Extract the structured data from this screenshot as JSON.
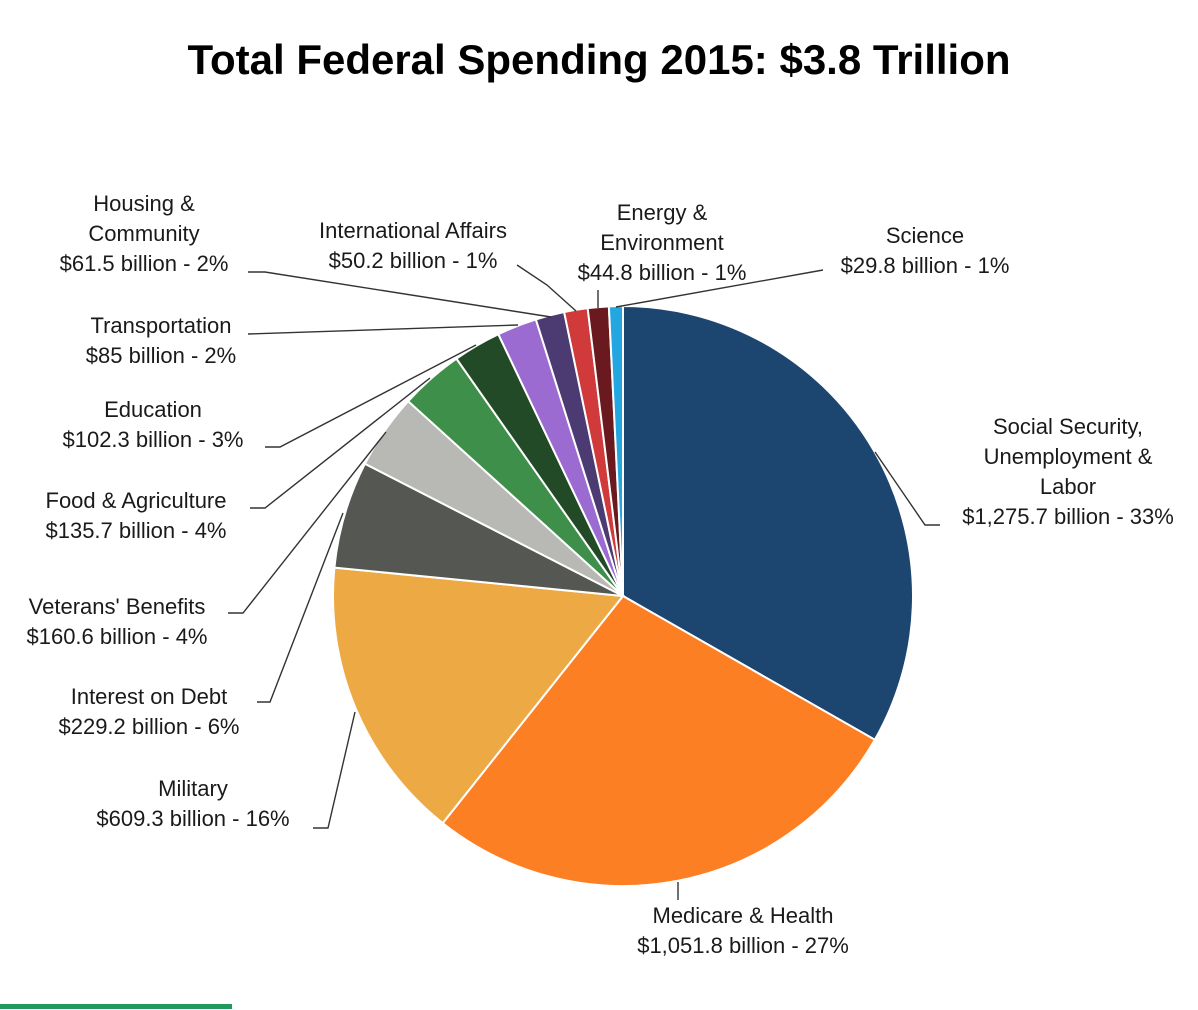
{
  "chart_data": {
    "type": "pie",
    "title": "Total Federal Spending 2015: $3.8 Trillion",
    "slices": [
      {
        "name": "Social Security, Unemployment & Labor",
        "label_lines": [
          "Social Security,",
          "Unemployment &",
          "Labor"
        ],
        "value_text": "$1,275.7 billion - 33%",
        "value": 1275.7,
        "percent": 33,
        "color": "#1c4570"
      },
      {
        "name": "Medicare & Health",
        "label_lines": [
          "Medicare & Health"
        ],
        "value_text": "$1,051.8 billion - 27%",
        "value": 1051.8,
        "percent": 27,
        "color": "#fc7f24"
      },
      {
        "name": "Military",
        "label_lines": [
          "Military"
        ],
        "value_text": "$609.3 billion - 16%",
        "value": 609.3,
        "percent": 16,
        "color": "#edaa44"
      },
      {
        "name": "Interest on Debt",
        "label_lines": [
          "Interest on Debt"
        ],
        "value_text": "$229.2 billion - 6%",
        "value": 229.2,
        "percent": 6,
        "color": "#555753"
      },
      {
        "name": "Veterans' Benefits",
        "label_lines": [
          "Veterans' Benefits"
        ],
        "value_text": "$160.6 billion - 4%",
        "value": 160.6,
        "percent": 4,
        "color": "#b8b8b4"
      },
      {
        "name": "Food & Agriculture",
        "label_lines": [
          "Food & Agriculture"
        ],
        "value_text": "$135.7 billion - 4%",
        "value": 135.7,
        "percent": 4,
        "color": "#3d8f4a"
      },
      {
        "name": "Education",
        "label_lines": [
          "Education"
        ],
        "value_text": "$102.3 billion - 3%",
        "value": 102.3,
        "percent": 3,
        "color": "#224a27"
      },
      {
        "name": "Transportation",
        "label_lines": [
          "Transportation"
        ],
        "value_text": "$85 billion - 2%",
        "value": 85,
        "percent": 2,
        "color": "#9c6bd2"
      },
      {
        "name": "Housing & Community",
        "label_lines": [
          "Housing &",
          "Community"
        ],
        "value_text": "$61.5 billion - 2%",
        "value": 61.5,
        "percent": 2,
        "color": "#4c3a72"
      },
      {
        "name": "International Affairs",
        "label_lines": [
          "International Affairs"
        ],
        "value_text": "$50.2 billion - 1%",
        "value": 50.2,
        "percent": 1,
        "color": "#d03a3a"
      },
      {
        "name": "Energy & Environment",
        "label_lines": [
          "Energy &",
          "Environment"
        ],
        "value_text": "$44.8 billion - 1%",
        "value": 44.8,
        "percent": 1,
        "color": "#6a1a1e"
      },
      {
        "name": "Science",
        "label_lines": [
          "Science"
        ],
        "value_text": "$29.8 billion - 1%",
        "value": 29.8,
        "percent": 1,
        "color": "#24a7e0"
      }
    ]
  },
  "accent_color": "#1f9a5c"
}
